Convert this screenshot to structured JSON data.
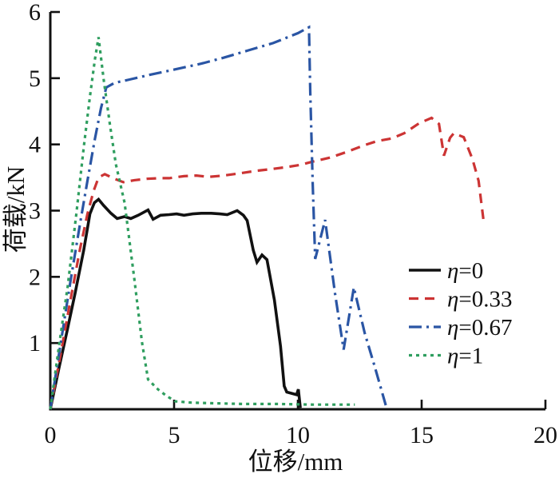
{
  "figure": {
    "background": "#ffffff"
  },
  "chart_data": {
    "type": "line",
    "title": "",
    "xlabel": "位移/mm",
    "ylabel": "荷载/kN",
    "xlim": [
      0,
      20
    ],
    "ylim": [
      0,
      6
    ],
    "xticks": [
      0,
      5,
      10,
      15,
      20
    ],
    "yticks": [
      1,
      2,
      3,
      4,
      5,
      6
    ],
    "grid": false,
    "legend_position": "right-middle",
    "axis_color": "#111111",
    "series": [
      {
        "key": "eta-0",
        "label": "η=0",
        "legend_var": "η",
        "legend_val": "=0",
        "color": "#111111",
        "style": "solid",
        "points": [
          [
            0,
            0
          ],
          [
            0.35,
            0.62
          ],
          [
            0.7,
            1.22
          ],
          [
            1.0,
            1.75
          ],
          [
            1.35,
            2.4
          ],
          [
            1.6,
            2.95
          ],
          [
            1.78,
            3.12
          ],
          [
            1.95,
            3.17
          ],
          [
            2.15,
            3.08
          ],
          [
            2.45,
            2.96
          ],
          [
            2.7,
            2.88
          ],
          [
            3.0,
            2.91
          ],
          [
            3.25,
            2.88
          ],
          [
            3.55,
            2.93
          ],
          [
            3.95,
            3.01
          ],
          [
            4.15,
            2.87
          ],
          [
            4.45,
            2.93
          ],
          [
            4.8,
            2.94
          ],
          [
            5.1,
            2.95
          ],
          [
            5.4,
            2.93
          ],
          [
            5.75,
            2.95
          ],
          [
            6.1,
            2.96
          ],
          [
            6.5,
            2.96
          ],
          [
            6.85,
            2.95
          ],
          [
            7.15,
            2.94
          ],
          [
            7.55,
            3.0
          ],
          [
            7.8,
            2.93
          ],
          [
            7.95,
            2.85
          ],
          [
            8.2,
            2.4
          ],
          [
            8.35,
            2.22
          ],
          [
            8.55,
            2.33
          ],
          [
            8.75,
            2.26
          ],
          [
            9.05,
            1.65
          ],
          [
            9.3,
            0.95
          ],
          [
            9.45,
            0.35
          ],
          [
            9.55,
            0.26
          ],
          [
            9.95,
            0.22
          ],
          [
            10.02,
            0.3
          ],
          [
            10.1,
            0.02
          ]
        ]
      },
      {
        "key": "eta-0.33",
        "label": "η=0.33",
        "legend_var": "η",
        "legend_val": "=0.33",
        "color": "#cc3434",
        "style": "dashed",
        "points": [
          [
            0,
            0
          ],
          [
            0.4,
            0.8
          ],
          [
            0.8,
            1.62
          ],
          [
            1.2,
            2.42
          ],
          [
            1.5,
            2.95
          ],
          [
            1.75,
            3.3
          ],
          [
            1.95,
            3.5
          ],
          [
            2.2,
            3.55
          ],
          [
            2.6,
            3.48
          ],
          [
            2.95,
            3.43
          ],
          [
            3.4,
            3.46
          ],
          [
            3.9,
            3.48
          ],
          [
            4.4,
            3.49
          ],
          [
            4.8,
            3.49
          ],
          [
            5.4,
            3.52
          ],
          [
            5.9,
            3.53
          ],
          [
            6.4,
            3.51
          ],
          [
            7.0,
            3.53
          ],
          [
            7.6,
            3.56
          ],
          [
            8.3,
            3.6
          ],
          [
            9.0,
            3.63
          ],
          [
            9.6,
            3.66
          ],
          [
            10.1,
            3.69
          ],
          [
            10.6,
            3.74
          ],
          [
            11.3,
            3.8
          ],
          [
            12.0,
            3.89
          ],
          [
            12.7,
            3.99
          ],
          [
            13.2,
            4.05
          ],
          [
            13.8,
            4.09
          ],
          [
            14.3,
            4.17
          ],
          [
            14.9,
            4.32
          ],
          [
            15.4,
            4.4
          ],
          [
            15.7,
            4.31
          ],
          [
            15.9,
            3.83
          ],
          [
            16.15,
            4.1
          ],
          [
            16.3,
            4.17
          ],
          [
            16.7,
            4.11
          ],
          [
            17.05,
            3.78
          ],
          [
            17.3,
            3.45
          ],
          [
            17.5,
            2.85
          ]
        ]
      },
      {
        "key": "eta-0.67",
        "label": "η=0.67",
        "legend_var": "η",
        "legend_val": "=0.67",
        "color": "#2a55a4",
        "style": "dashdot",
        "points": [
          [
            0,
            0
          ],
          [
            0.4,
            0.95
          ],
          [
            0.8,
            1.9
          ],
          [
            1.2,
            2.8
          ],
          [
            1.5,
            3.45
          ],
          [
            1.8,
            4.08
          ],
          [
            2.05,
            4.55
          ],
          [
            2.26,
            4.86
          ],
          [
            2.6,
            4.93
          ],
          [
            3.2,
            4.98
          ],
          [
            4.0,
            5.05
          ],
          [
            5.0,
            5.13
          ],
          [
            6.1,
            5.22
          ],
          [
            7.0,
            5.31
          ],
          [
            8.0,
            5.42
          ],
          [
            9.0,
            5.53
          ],
          [
            10.0,
            5.68
          ],
          [
            10.45,
            5.77
          ],
          [
            10.5,
            4.8
          ],
          [
            10.6,
            3.4
          ],
          [
            10.7,
            2.27
          ],
          [
            11.1,
            2.86
          ],
          [
            11.5,
            1.75
          ],
          [
            11.85,
            0.9
          ],
          [
            12.26,
            1.84
          ],
          [
            12.7,
            1.15
          ],
          [
            13.1,
            0.65
          ],
          [
            13.55,
            0.06
          ]
        ]
      },
      {
        "key": "eta-1",
        "label": "η=1",
        "legend_var": "η",
        "legend_val": "=1",
        "color": "#2f9e5f",
        "style": "dotted",
        "points": [
          [
            0,
            0
          ],
          [
            0.35,
            0.95
          ],
          [
            0.7,
            1.85
          ],
          [
            1.05,
            2.95
          ],
          [
            1.35,
            3.95
          ],
          [
            1.6,
            4.72
          ],
          [
            1.8,
            5.28
          ],
          [
            1.95,
            5.62
          ],
          [
            2.15,
            5.0
          ],
          [
            2.4,
            4.32
          ],
          [
            2.65,
            3.7
          ],
          [
            3.0,
            3.12
          ],
          [
            3.4,
            1.95
          ],
          [
            3.7,
            1.02
          ],
          [
            3.95,
            0.45
          ],
          [
            4.35,
            0.3
          ],
          [
            4.7,
            0.2
          ],
          [
            5.05,
            0.12
          ],
          [
            5.7,
            0.1
          ],
          [
            6.6,
            0.09
          ],
          [
            7.8,
            0.08
          ],
          [
            9.2,
            0.08
          ],
          [
            10.6,
            0.07
          ],
          [
            11.5,
            0.07
          ],
          [
            12.3,
            0.07
          ]
        ]
      }
    ]
  }
}
